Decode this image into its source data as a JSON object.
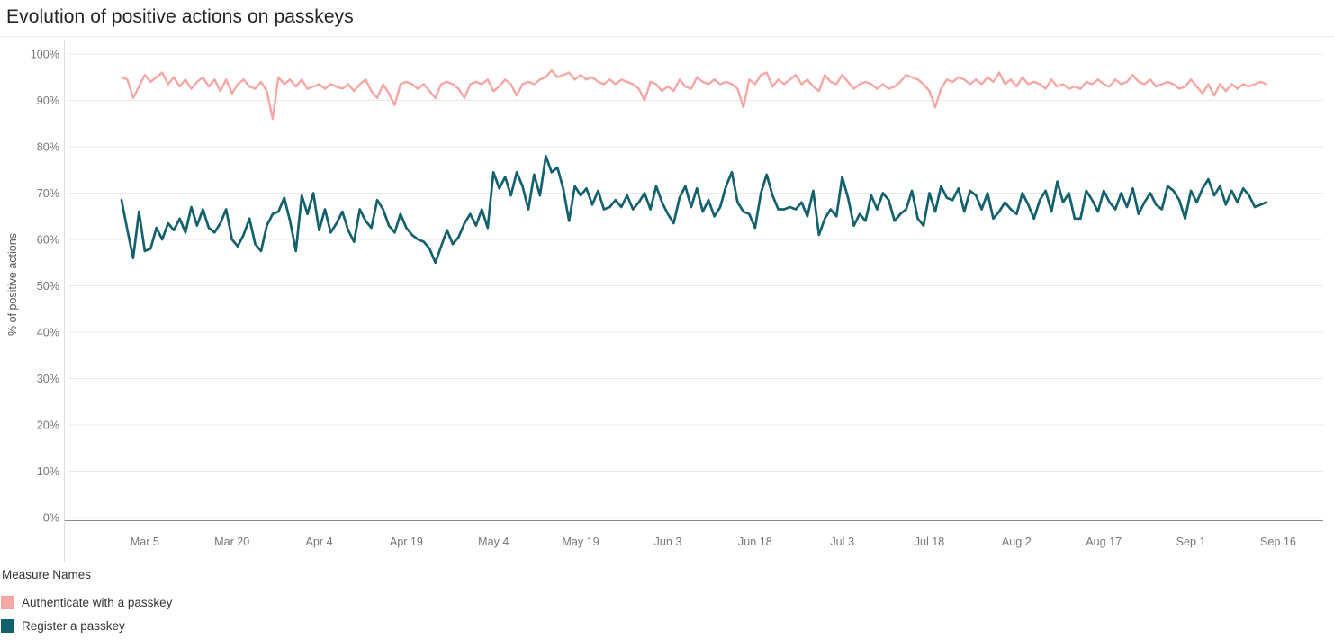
{
  "title": "Evolution of positive actions on passkeys",
  "legend": {
    "title": "Measure Names",
    "items": [
      {
        "label": "Authenticate with a passkey",
        "color": "#F6A7A3"
      },
      {
        "label": "Register a passkey",
        "color": "#12616D"
      }
    ]
  },
  "chart_data": {
    "type": "line",
    "title": "Evolution of positive actions on passkeys",
    "xlabel": "",
    "ylabel": "% of positive actions",
    "ylim": [
      0,
      100
    ],
    "grid": "horizontal",
    "legend_position": "bottom-left",
    "x_start": "Mar 1",
    "x_end": "Sep 14",
    "frequency": "daily",
    "y_ticks": [
      {
        "value": 0,
        "label": "0%"
      },
      {
        "value": 10,
        "label": "10%"
      },
      {
        "value": 20,
        "label": "20%"
      },
      {
        "value": 30,
        "label": "30%"
      },
      {
        "value": 40,
        "label": "40%"
      },
      {
        "value": 50,
        "label": "50%"
      },
      {
        "value": 60,
        "label": "60%"
      },
      {
        "value": 70,
        "label": "70%"
      },
      {
        "value": 80,
        "label": "80%"
      },
      {
        "value": 90,
        "label": "90%"
      },
      {
        "value": 100,
        "label": "100%"
      }
    ],
    "x_ticks": [
      {
        "label": "Mar 5",
        "day": 4
      },
      {
        "label": "Mar 20",
        "day": 19
      },
      {
        "label": "Apr 4",
        "day": 34
      },
      {
        "label": "Apr 19",
        "day": 49
      },
      {
        "label": "May 4",
        "day": 64
      },
      {
        "label": "May 19",
        "day": 79
      },
      {
        "label": "Jun 3",
        "day": 94
      },
      {
        "label": "Jun 18",
        "day": 109
      },
      {
        "label": "Jul 3",
        "day": 124
      },
      {
        "label": "Jul 18",
        "day": 139
      },
      {
        "label": "Aug 2",
        "day": 154
      },
      {
        "label": "Aug 17",
        "day": 169
      },
      {
        "label": "Sep 1",
        "day": 184
      },
      {
        "label": "Sep 16",
        "day": 199
      }
    ],
    "series": [
      {
        "name": "Authenticate with a passkey",
        "color": "#F6A7A3",
        "values": [
          95,
          94.5,
          90.5,
          93,
          95.5,
          94,
          95,
          96,
          93.5,
          95,
          93,
          94.5,
          92.5,
          94,
          95,
          93,
          94.5,
          92,
          94.5,
          91.5,
          93.5,
          94.5,
          93,
          92.5,
          94,
          92,
          86,
          95,
          93.5,
          94.5,
          93,
          94.5,
          92.5,
          93,
          93.5,
          92.5,
          93.5,
          93,
          92.5,
          93.5,
          92,
          93.5,
          94.5,
          92,
          90.5,
          93.5,
          91.5,
          89,
          93.5,
          94,
          93.5,
          92.5,
          93.5,
          92,
          90.5,
          93.5,
          94,
          93.5,
          92.5,
          90.5,
          93.5,
          94,
          93.5,
          94.5,
          92,
          93,
          94.5,
          93.5,
          91,
          93.5,
          94,
          93.5,
          94.5,
          95,
          96.5,
          95,
          95.5,
          96,
          94.5,
          95.5,
          94.5,
          95,
          94,
          93.5,
          94.5,
          93.5,
          94.5,
          94,
          93.5,
          92.5,
          90,
          94,
          93.5,
          92,
          93,
          92,
          94.5,
          93,
          92.5,
          95,
          94,
          93.5,
          94.5,
          93.5,
          94,
          93.5,
          92.5,
          88.5,
          94.5,
          93.5,
          95.5,
          96,
          93,
          94.5,
          93.5,
          94.5,
          95.5,
          93.5,
          94.5,
          93,
          92,
          95.5,
          94,
          93.5,
          95.5,
          94,
          92.5,
          93.5,
          94,
          93.5,
          92.5,
          93.5,
          92.5,
          93,
          94,
          95.5,
          95,
          94.5,
          93.5,
          92,
          88.5,
          92.5,
          94.5,
          94,
          95,
          94.5,
          93.5,
          94.5,
          93.5,
          95,
          94,
          96,
          93.5,
          94.5,
          93,
          95,
          93.5,
          94,
          93.5,
          92.5,
          94.5,
          93,
          93.5,
          92.5,
          93,
          92.5,
          94,
          93.5,
          94.5,
          93.5,
          93,
          94.5,
          93.5,
          94,
          95.5,
          94,
          93.5,
          94.5,
          93,
          93.5,
          94,
          93.5,
          92.5,
          93,
          94.5,
          93,
          91.5,
          93.5,
          91,
          93.5,
          92,
          93.5,
          92.5,
          93.5,
          93,
          93.5,
          94,
          93.5
        ]
      },
      {
        "name": "Register a passkey",
        "color": "#12616D",
        "values": [
          68.5,
          62,
          56,
          66,
          57.5,
          58,
          62.5,
          60,
          63.5,
          62,
          64.5,
          61.5,
          67,
          63,
          66.5,
          62.5,
          61.5,
          63.5,
          66.5,
          60,
          58.5,
          61,
          64.5,
          59,
          57.5,
          63,
          65.5,
          66,
          69,
          64,
          57.5,
          69.5,
          65.5,
          70,
          62,
          66.5,
          61.5,
          63.5,
          66,
          62,
          59.5,
          66.5,
          64,
          62.5,
          68.5,
          66.5,
          63,
          61.5,
          65.5,
          62.5,
          61,
          60,
          59.5,
          58,
          55,
          58.5,
          62,
          59,
          60.5,
          63.5,
          65.5,
          63,
          66.5,
          62.5,
          74.5,
          71,
          73.5,
          69.5,
          74.5,
          71.5,
          66.5,
          74,
          69.5,
          78,
          74.5,
          75.5,
          71,
          64,
          71.5,
          69.5,
          71,
          67.5,
          70.5,
          66.5,
          67,
          68.5,
          67,
          69.5,
          66.5,
          68,
          70,
          66.5,
          71.5,
          68,
          65.5,
          63.5,
          69,
          71.5,
          67,
          71,
          66,
          68.5,
          65,
          67,
          71.5,
          74.5,
          68,
          66,
          65.5,
          62.5,
          70,
          74,
          69.5,
          66.5,
          66.5,
          67,
          66.5,
          68,
          65,
          70.5,
          61,
          64.5,
          66.5,
          65,
          73.5,
          69,
          63,
          65.5,
          64,
          69.5,
          66.5,
          70,
          68.5,
          64,
          65.5,
          66.5,
          70.5,
          64.5,
          63,
          70,
          66,
          71.5,
          69,
          68.5,
          71,
          66,
          70.5,
          69.5,
          66.5,
          70,
          64.5,
          66,
          68,
          66.5,
          65.5,
          70,
          67.5,
          64.5,
          68.5,
          70.5,
          66,
          72.5,
          68,
          70,
          64.5,
          64.5,
          70.5,
          68.5,
          66,
          70.5,
          68,
          66.5,
          70,
          67,
          71,
          65.5,
          68,
          70,
          67.5,
          66.5,
          71.5,
          70.5,
          68.5,
          64.5,
          70.5,
          68,
          71,
          73,
          69.5,
          71.5,
          67.5,
          70.5,
          68,
          71,
          69.5,
          67,
          67.5,
          68
        ]
      }
    ]
  }
}
